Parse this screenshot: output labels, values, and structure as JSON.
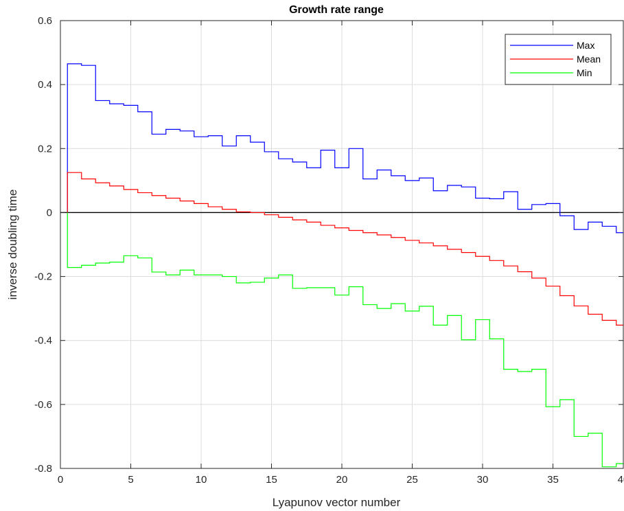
{
  "chart_data": {
    "type": "line",
    "step": true,
    "title": "Growth rate range",
    "xlabel": "Lyapunov vector number",
    "ylabel": "inverse doubling time",
    "xlim": [
      0,
      40
    ],
    "ylim": [
      -0.8,
      0.6
    ],
    "xticks": [
      0,
      5,
      10,
      15,
      20,
      25,
      30,
      35,
      40
    ],
    "yticks": [
      -0.8,
      -0.6,
      -0.4,
      -0.2,
      0,
      0.2,
      0.4,
      0.6
    ],
    "xtick_labels": [
      "0",
      "5",
      "10",
      "15",
      "20",
      "25",
      "30",
      "35",
      "40"
    ],
    "ytick_labels": [
      "-0.8",
      "-0.6",
      "-0.4",
      "-0.2",
      "0",
      "0.2",
      "0.4",
      "0.6"
    ],
    "grid": true,
    "legend_position": "top-right",
    "zero_line": {
      "y": 0,
      "color": "#000000"
    },
    "x": [
      1,
      2,
      3,
      4,
      5,
      6,
      7,
      8,
      9,
      10,
      11,
      12,
      13,
      14,
      15,
      16,
      17,
      18,
      19,
      20,
      21,
      22,
      23,
      24,
      25,
      26,
      27,
      28,
      29,
      30,
      31,
      32,
      33,
      34,
      35,
      36,
      37,
      38,
      39,
      40
    ],
    "series": [
      {
        "name": "Max",
        "color": "#0000ff",
        "values": [
          0.465,
          0.46,
          0.35,
          0.34,
          0.335,
          0.315,
          0.245,
          0.26,
          0.255,
          0.237,
          0.24,
          0.208,
          0.24,
          0.22,
          0.19,
          0.168,
          0.158,
          0.14,
          0.195,
          0.14,
          0.2,
          0.105,
          0.133,
          0.115,
          0.1,
          0.108,
          0.068,
          0.085,
          0.08,
          0.045,
          0.043,
          0.065,
          0.01,
          0.025,
          0.028,
          -0.01,
          -0.053,
          -0.03,
          -0.043,
          -0.063
        ]
      },
      {
        "name": "Mean",
        "color": "#ff0000",
        "values": [
          0.125,
          0.105,
          0.093,
          0.083,
          0.072,
          0.062,
          0.053,
          0.045,
          0.036,
          0.028,
          0.018,
          0.01,
          0.002,
          0.0,
          -0.007,
          -0.015,
          -0.023,
          -0.03,
          -0.04,
          -0.048,
          -0.056,
          -0.063,
          -0.07,
          -0.078,
          -0.087,
          -0.095,
          -0.104,
          -0.115,
          -0.125,
          -0.137,
          -0.15,
          -0.167,
          -0.185,
          -0.205,
          -0.23,
          -0.26,
          -0.292,
          -0.318,
          -0.337,
          -0.352
        ]
      },
      {
        "name": "Min",
        "color": "#00ff00",
        "values": [
          -0.172,
          -0.165,
          -0.158,
          -0.155,
          -0.135,
          -0.142,
          -0.186,
          -0.195,
          -0.18,
          -0.195,
          -0.195,
          -0.2,
          -0.22,
          -0.218,
          -0.205,
          -0.195,
          -0.237,
          -0.235,
          -0.235,
          -0.258,
          -0.232,
          -0.288,
          -0.3,
          -0.285,
          -0.308,
          -0.293,
          -0.352,
          -0.322,
          -0.398,
          -0.335,
          -0.395,
          -0.49,
          -0.497,
          -0.49,
          -0.607,
          -0.585,
          -0.7,
          -0.69,
          -0.795,
          -0.785
        ]
      }
    ]
  }
}
